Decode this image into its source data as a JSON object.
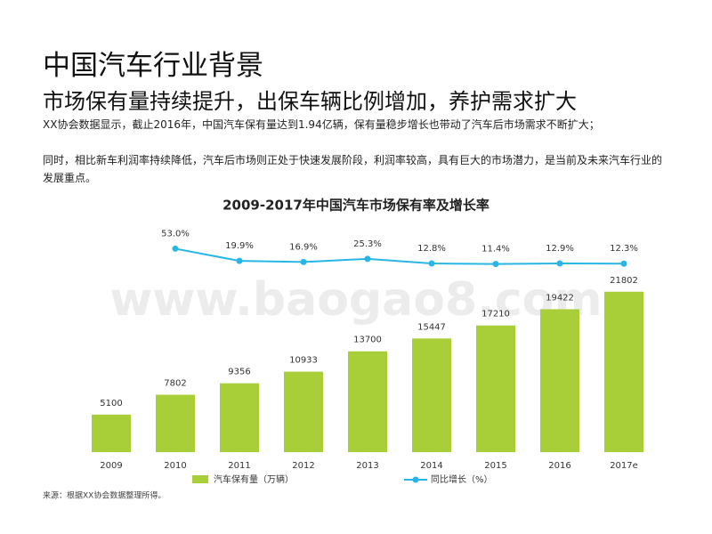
{
  "header": {
    "title": "中国汽车行业背景",
    "subtitle": "市场保有量持续提升，出保车辆比例增加，养护需求扩大"
  },
  "paragraphs": [
    "XX协会数据显示，截止2016年，中国汽车保有量达到1.94亿辆，保有量稳步增长也带动了汽车后市场需求不断扩大；",
    "同时，相比新车利润率持续降低，汽车后市场则正处于快速发展阶段，利润率较高，具有巨大的市场潜力，是当前及未来汽车行业的发展重点。"
  ],
  "chart_data": {
    "type": "bar",
    "title": "2009-2017年中国汽车市场保有率及增长率",
    "categories": [
      "2009",
      "2010",
      "2011",
      "2012",
      "2013",
      "2014",
      "2015",
      "2016",
      "2017e"
    ],
    "series": [
      {
        "name": "汽车保有量（万辆）",
        "color": "#a8cf38",
        "values": [
          5100,
          7802,
          9356,
          10933,
          13700,
          15447,
          17210,
          19422,
          21802
        ]
      },
      {
        "name": "同比增长（%）",
        "color": "#29b6e6",
        "axis": "y2",
        "values": [
          null,
          53.0,
          19.9,
          16.9,
          25.3,
          12.8,
          11.4,
          12.9,
          12.3
        ],
        "value_labels": [
          null,
          "53.0%",
          "19.9%",
          "16.9%",
          "25.3%",
          "12.8%",
          "11.4%",
          "12.9%",
          "12.3%"
        ]
      }
    ],
    "ylim": [
      0,
      30000
    ],
    "y2lim": [
      -500,
      100
    ]
  },
  "source": "来源：根据XX协会数据整理所得。",
  "watermark": "www.baogao8.com"
}
